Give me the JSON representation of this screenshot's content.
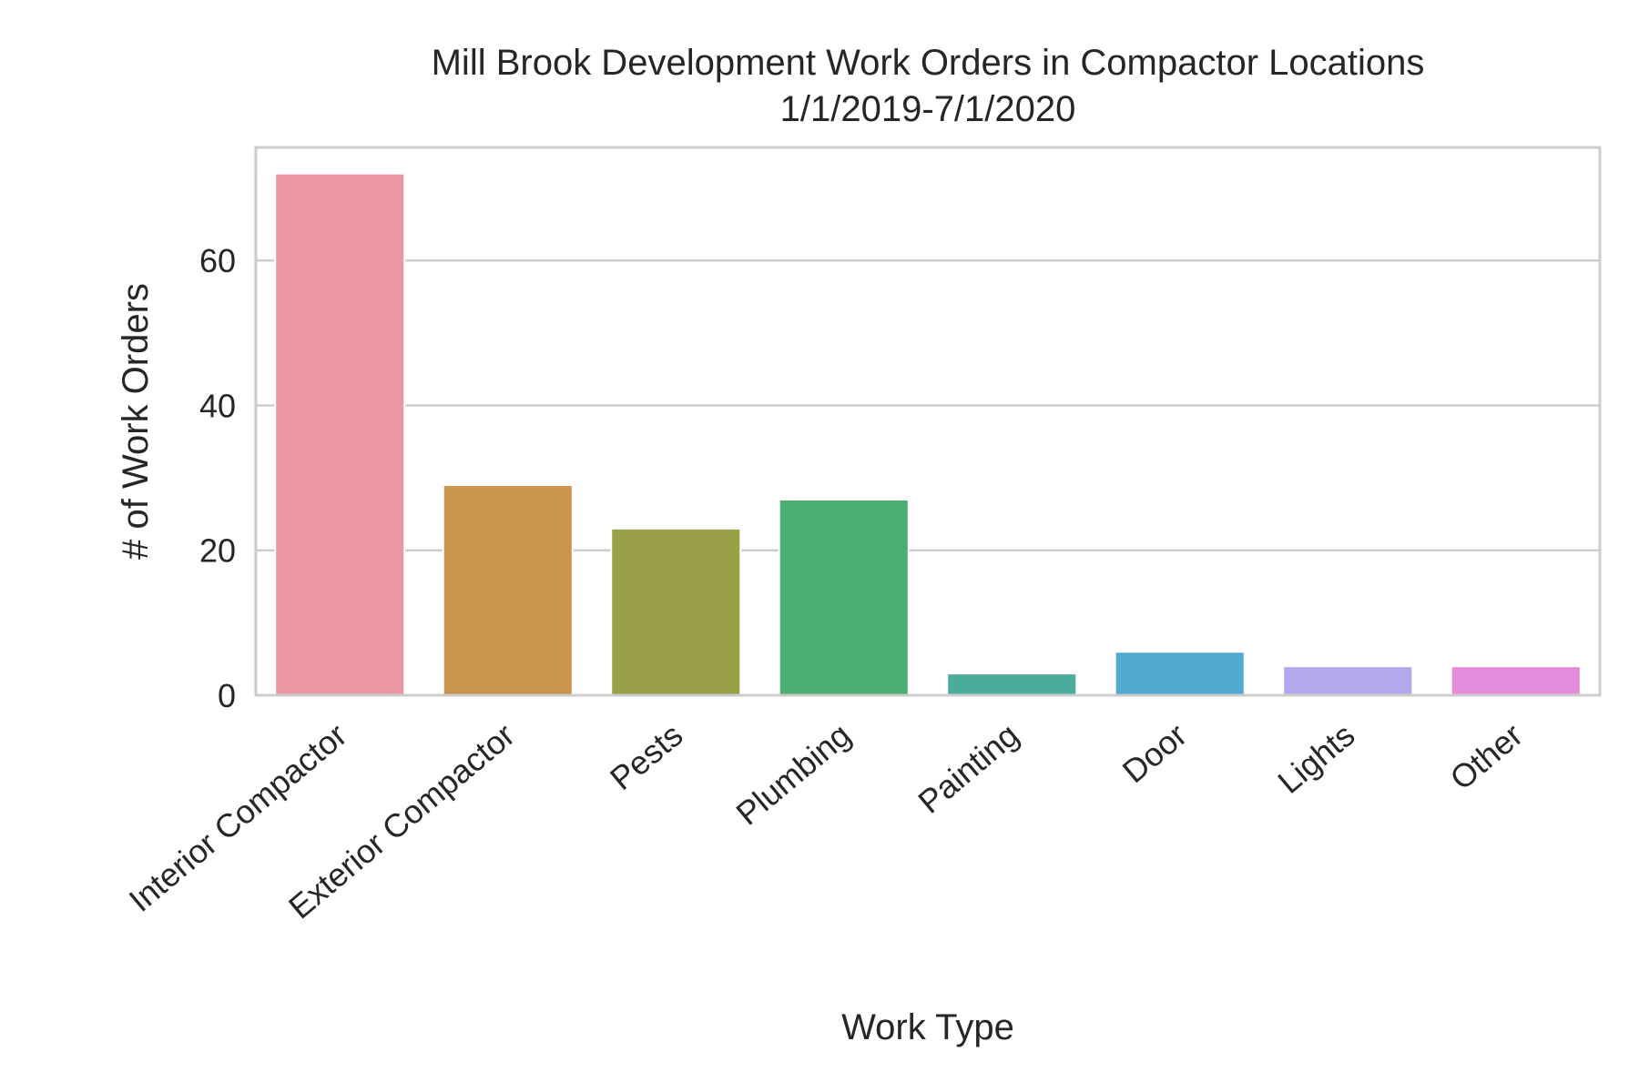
{
  "chart_data": {
    "type": "bar",
    "title": "Mill Brook Development Work Orders in Compactor Locations",
    "subtitle": "1/1/2019-7/1/2020",
    "xlabel": "Work Type",
    "ylabel": "# of Work Orders",
    "categories": [
      "Interior Compactor",
      "Exterior Compactor",
      "Pests",
      "Plumbing",
      "Painting",
      "Door",
      "Lights",
      "Other"
    ],
    "values": [
      72,
      29,
      23,
      27,
      3,
      6,
      4,
      4
    ],
    "colors": [
      "#ea96a3",
      "#c9954c",
      "#99a047",
      "#4bae73",
      "#4bab9d",
      "#51abd0",
      "#b4a7ec",
      "#e48cdb"
    ],
    "ylim": [
      0,
      75.6
    ],
    "yticks": [
      0,
      20,
      40,
      60
    ],
    "grid": true,
    "legend": "none"
  }
}
